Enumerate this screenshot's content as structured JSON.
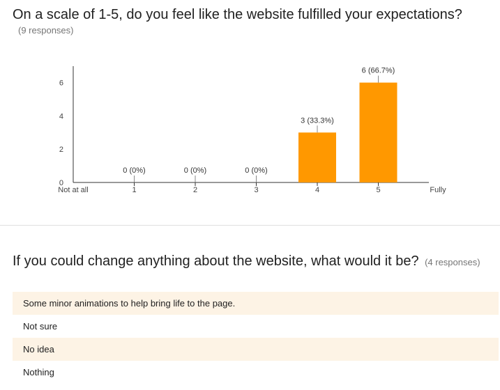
{
  "question1": {
    "title": "On a scale of 1-5, do you feel like the website fulfilled your expectations?",
    "responses": "(9 responses)"
  },
  "chart_data": {
    "type": "bar",
    "categories": [
      "1",
      "2",
      "3",
      "4",
      "5"
    ],
    "values": [
      0,
      0,
      0,
      3,
      6
    ],
    "data_labels": [
      "0 (0%)",
      "0 (0%)",
      "0 (0%)",
      "3 (33.3%)",
      "6 (66.7%)"
    ],
    "x_end_labels": {
      "low": "Not at all",
      "high": "Fully"
    },
    "y_ticks": [
      0,
      2,
      4,
      6
    ],
    "ylim": [
      0,
      6.8
    ],
    "bar_color": "#ff9800",
    "title": "",
    "xlabel": "",
    "ylabel": ""
  },
  "question2": {
    "title": "If you could change anything about the website, what would it be?",
    "responses": "(4 responses)",
    "answers": [
      "Some minor animations to help bring life to the page.",
      "Not sure",
      "No idea",
      "Nothing"
    ]
  },
  "colors": {
    "accent": "#ff9800",
    "answer_row_alt": "#fdf3e5",
    "muted_text": "#757575"
  }
}
